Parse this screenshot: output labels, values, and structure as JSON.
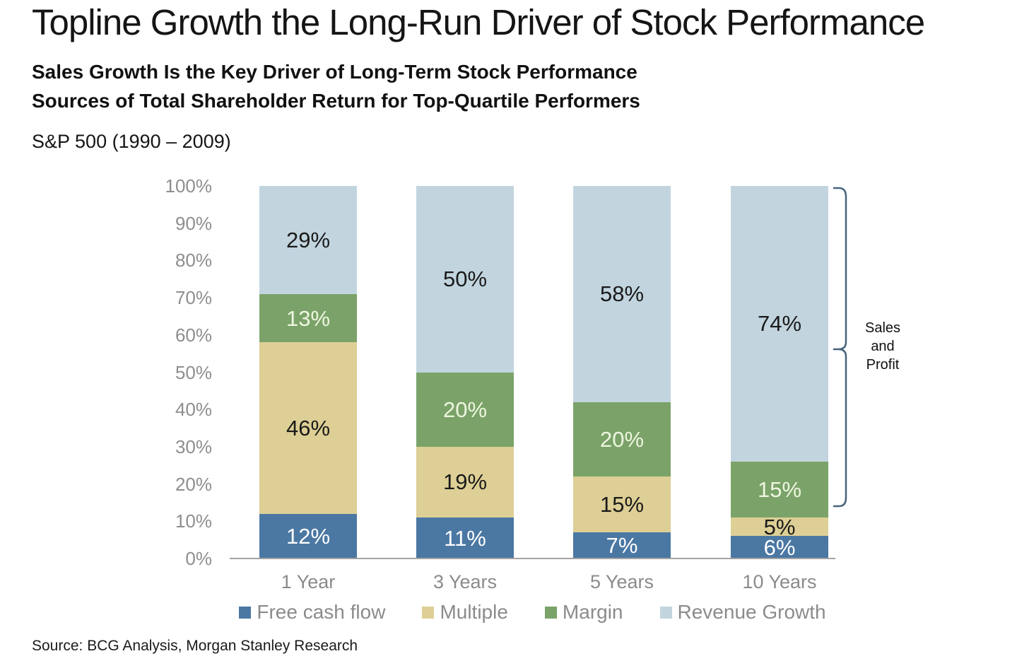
{
  "page": {
    "title": "Topline Growth the Long-Run Driver of Stock Performance",
    "subtitle_line1": "Sales Growth Is the Key Driver of Long-Term Stock Performance",
    "subtitle_line2": "Sources of Total Shareholder Return for Top-Quartile Performers",
    "period": "S&P 500 (1990 – 2009)",
    "source": "Source: BCG Analysis, Morgan Stanley Research"
  },
  "annotation": {
    "label_lines": [
      "Sales",
      "and",
      "Profit"
    ],
    "bracket_color": "#47637d"
  },
  "chart_data": {
    "type": "bar",
    "stacked": true,
    "title": "Sources of Total Shareholder Return for Top-Quartile Performers, S&P 500 (1990 – 2009)",
    "categories": [
      "1 Year",
      "3 Years",
      "5 Years",
      "10 Years"
    ],
    "series": [
      {
        "name": "Free cash flow",
        "color": "#4b77a3",
        "label_color": "#ffffff",
        "values": [
          12,
          11,
          7,
          6
        ]
      },
      {
        "name": "Multiple",
        "color": "#ddcf95",
        "label_color": "#1a1a1a",
        "values": [
          46,
          19,
          15,
          5
        ]
      },
      {
        "name": "Margin",
        "color": "#7ba369",
        "label_color": "#eef6e0",
        "values": [
          13,
          20,
          20,
          15
        ]
      },
      {
        "name": "Revenue Growth",
        "color": "#c2d5df",
        "label_color": "#1a1a1a",
        "values": [
          29,
          50,
          58,
          74
        ]
      }
    ],
    "data_label_suffix": "%",
    "xlabel": "",
    "ylabel": "",
    "ylim": [
      0,
      100
    ],
    "y_ticks": [
      "0%",
      "10%",
      "20%",
      "30%",
      "40%",
      "50%",
      "60%",
      "70%",
      "80%",
      "90%",
      "100%"
    ],
    "grid": false,
    "legend_position": "bottom",
    "axis_color": "#a3a3a3",
    "muted_text_color": "#8b8b8b"
  }
}
